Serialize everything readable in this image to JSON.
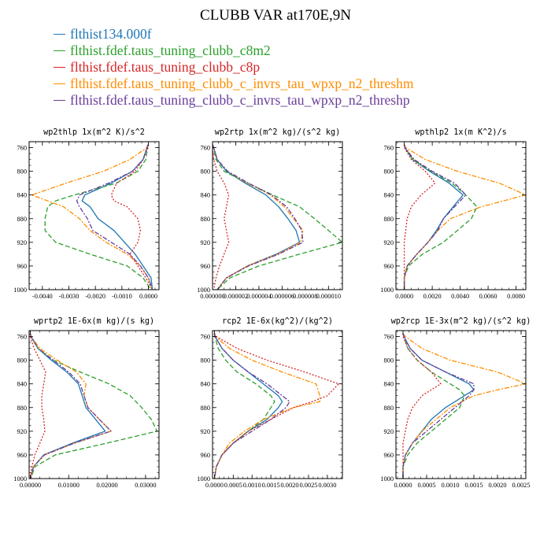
{
  "title": "CLUBB VAR at170E,9N",
  "legend": [
    {
      "name": "flthist134.000f",
      "color": "#1f77b4"
    },
    {
      "name": "flthist.fdef.taus_tuning_clubb_c8m2",
      "color": "#2ca02c"
    },
    {
      "name": "flthist.fdef.taus_tuning_clubb_c8p",
      "color": "#d62728"
    },
    {
      "name": "flthist.fdef.taus_tuning_clubb_c_invrs_tau_wpxp_n2_threshm",
      "color": "#ff8c00"
    },
    {
      "name": "flthist.fdef.taus_tuning_clubb_c_invrs_tau_wpxp_n2_threshp",
      "color": "#6a3d9a"
    }
  ],
  "chart_data": [
    {
      "type": "line",
      "title": "wp2thlp  1x(m^2 K)/s^2",
      "xlim": [
        -0.0045,
        0.0004
      ],
      "ylim": [
        1000,
        750
      ],
      "xticks": [
        -0.004,
        -0.003,
        -0.002,
        -0.001,
        0.0
      ],
      "xticklabels": [
        "-0.0040",
        "-0.0030",
        "-0.0020",
        "-0.0010",
        "0.0000"
      ],
      "yticks": [
        760,
        800,
        840,
        880,
        920,
        960,
        1000
      ],
      "pressure": [
        755,
        760,
        780,
        800,
        820,
        840,
        850,
        860,
        880,
        900,
        920,
        940,
        960,
        980,
        1000
      ],
      "series": [
        {
          "name": "flthist134.000f",
          "x": [
            -2e-05,
            -5e-05,
            -0.0002,
            -0.0006,
            -0.0014,
            -0.0024,
            -0.0025,
            -0.0022,
            -0.0019,
            -0.0013,
            -0.0009,
            -0.0005,
            -0.0002,
            0.0001,
            0.00015
          ]
        },
        {
          "name": "flthist.fdef.taus_tuning_clubb_c8m2",
          "x": [
            -2e-05,
            -3e-05,
            -0.0001,
            -0.0004,
            -0.0012,
            -0.0028,
            -0.0035,
            -0.0038,
            -0.0039,
            -0.0039,
            -0.0035,
            -0.0022,
            -0.0008,
            -0.0002,
            0.0001
          ]
        },
        {
          "name": "flthist.fdef.taus_tuning_clubb_c8p",
          "x": [
            0.0,
            -1e-05,
            -0.0002,
            -0.0005,
            -0.0012,
            -0.0014,
            -0.0013,
            -0.0008,
            -0.0004,
            -0.0003,
            -0.0004,
            -0.0007,
            -0.0004,
            -0.0001,
            0.00015
          ]
        },
        {
          "name": "flthist.fdef.taus_tuning_clubb_c_invrs_tau_wpxp_n2_threshm",
          "x": [
            -1e-05,
            -5e-05,
            -0.0007,
            -0.0017,
            -0.0031,
            -0.0044,
            -0.0038,
            -0.0032,
            -0.0026,
            -0.0022,
            -0.0016,
            -0.0008,
            -0.0003,
            0.0,
            0.00015
          ]
        },
        {
          "name": "flthist.fdef.taus_tuning_clubb_c_invrs_tau_wpxp_n2_threshp",
          "x": [
            -2e-05,
            -5e-05,
            -0.0002,
            -0.0006,
            -0.0015,
            -0.0026,
            -0.0027,
            -0.0026,
            -0.0023,
            -0.0021,
            -0.0014,
            -0.0007,
            -0.0003,
            0.0,
            0.00015
          ]
        }
      ]
    },
    {
      "type": "line",
      "title": "wp2rtp  1x(m^2 kg)/(s^2 kg)",
      "xlim": [
        0.0,
        1.12e-05
      ],
      "ylim": [
        1000,
        750
      ],
      "xticks": [
        0.0,
        2e-06,
        4e-06,
        6e-06,
        8e-06,
        1e-05
      ],
      "xticklabels": [
        "0.000000",
        "0.000002",
        "0.000004",
        "0.000006",
        "0.000008",
        "0.000010"
      ],
      "yticks": [
        760,
        800,
        840,
        880,
        920,
        960,
        1000
      ],
      "pressure": [
        755,
        760,
        780,
        800,
        820,
        840,
        860,
        880,
        900,
        920,
        940,
        960,
        980,
        1000
      ],
      "series": [
        {
          "name": "flthist134.000f",
          "x": [
            0.0,
            1e-07,
            4e-07,
            1.2e-06,
            2.8e-06,
            4.6e-06,
            5.7e-06,
            6.5e-06,
            7.2e-06,
            7.5e-06,
            5.5e-06,
            3e-06,
            1.2e-06,
            4e-07
          ]
        },
        {
          "name": "flthist.fdef.taus_tuning_clubb_c8m2",
          "x": [
            0.0,
            1e-07,
            3e-07,
            1e-06,
            3e-06,
            5.2e-06,
            7.5e-06,
            8.8e-06,
            1e-05,
            1.12e-05,
            7.5e-06,
            4e-06,
            1.5e-06,
            4e-07
          ]
        },
        {
          "name": "flthist.fdef.taus_tuning_clubb_c8p",
          "x": [
            0.0,
            0.0,
            1e-07,
            4e-07,
            1e-06,
            1.4e-06,
            1.2e-06,
            1e-06,
            1.2e-06,
            1.4e-06,
            1e-06,
            6e-07,
            3e-07,
            1e-07
          ]
        },
        {
          "name": "flthist.fdef.taus_tuning_clubb_c_invrs_tau_wpxp_n2_threshm",
          "x": [
            0.0,
            1e-07,
            4e-07,
            1.3e-06,
            3e-06,
            5e-06,
            6.2e-06,
            7e-06,
            7.8e-06,
            7.6e-06,
            5.6e-06,
            3e-06,
            1.2e-06,
            4e-07
          ]
        },
        {
          "name": "flthist.fdef.taus_tuning_clubb_c_invrs_tau_wpxp_n2_threshp",
          "x": [
            0.0,
            1e-07,
            4e-07,
            1.3e-06,
            3.1e-06,
            5.1e-06,
            6.4e-06,
            7.1e-06,
            7.7e-06,
            7.8e-06,
            5.7e-06,
            3.1e-06,
            1.2e-06,
            4e-07
          ]
        }
      ]
    },
    {
      "type": "line",
      "title": "wpthlp2  1x(m K^2)/s",
      "xlim": [
        -0.0006,
        0.0087
      ],
      "ylim": [
        1000,
        750
      ],
      "xticks": [
        0.0,
        0.002,
        0.004,
        0.006,
        0.008
      ],
      "xticklabels": [
        "0.0000",
        "0.0020",
        "0.0040",
        "0.0060",
        "0.0080"
      ],
      "yticks": [
        760,
        800,
        840,
        880,
        920,
        960,
        1000
      ],
      "pressure": [
        755,
        760,
        780,
        800,
        820,
        840,
        860,
        880,
        900,
        920,
        940,
        960,
        980,
        1000
      ],
      "series": [
        {
          "name": "flthist134.000f",
          "x": [
            0.0,
            5e-05,
            0.0006,
            0.0018,
            0.0032,
            0.0042,
            0.0035,
            0.0028,
            0.0023,
            0.0017,
            0.0009,
            0.0002,
            0.0,
            0.0
          ]
        },
        {
          "name": "flthist.fdef.taus_tuning_clubb_c8m2",
          "x": [
            0.0,
            5e-05,
            0.0006,
            0.0019,
            0.0034,
            0.0044,
            0.0052,
            0.0048,
            0.0038,
            0.0028,
            0.0013,
            0.0003,
            0.0,
            0.0
          ]
        },
        {
          "name": "flthist.fdef.taus_tuning_clubb_c8p",
          "x": [
            0.0,
            0.0,
            0.0005,
            0.0015,
            0.0022,
            0.0012,
            0.0005,
            0.0002,
            0.0001,
            0.0,
            0.0,
            0.0,
            0.0,
            0.0
          ]
        },
        {
          "name": "flthist.fdef.taus_tuning_clubb_c_invrs_tau_wpxp_n2_threshm",
          "x": [
            0.0,
            0.0001,
            0.0015,
            0.0038,
            0.0068,
            0.0087,
            0.0055,
            0.0033,
            0.0024,
            0.0017,
            0.0009,
            0.0002,
            0.0,
            0.0
          ]
        },
        {
          "name": "flthist.fdef.taus_tuning_clubb_c_invrs_tau_wpxp_n2_threshp",
          "x": [
            0.0,
            5e-05,
            0.0007,
            0.002,
            0.0036,
            0.0044,
            0.0036,
            0.0028,
            0.0024,
            0.0017,
            0.0009,
            0.0002,
            0.0,
            0.0
          ]
        }
      ]
    },
    {
      "type": "line",
      "title": "wprtp2  1E-6x(m kg)/(s kg)",
      "xlim": [
        -0.0003,
        0.0335
      ],
      "ylim": [
        1000,
        750
      ],
      "xticks": [
        0.0,
        0.01,
        0.02,
        0.03
      ],
      "xticklabels": [
        "0.00000",
        "0.01000",
        "0.02000",
        "0.03000"
      ],
      "yticks": [
        760,
        800,
        840,
        880,
        920,
        960,
        1000
      ],
      "pressure": [
        755,
        760,
        780,
        800,
        820,
        840,
        860,
        880,
        900,
        920,
        940,
        960,
        980,
        1000
      ],
      "series": [
        {
          "name": "flthist134.000f",
          "x": [
            0.0,
            0.0002,
            0.002,
            0.0055,
            0.0095,
            0.0125,
            0.0135,
            0.0145,
            0.017,
            0.0195,
            0.011,
            0.0035,
            0.0008,
            0.0001
          ]
        },
        {
          "name": "flthist.fdef.taus_tuning_clubb_c8m2",
          "x": [
            0.0,
            0.0002,
            0.002,
            0.006,
            0.013,
            0.0205,
            0.026,
            0.029,
            0.0315,
            0.033,
            0.02,
            0.0065,
            0.0012,
            0.0001
          ]
        },
        {
          "name": "flthist.fdef.taus_tuning_clubb_c8p",
          "x": [
            0.0,
            0.0,
            0.001,
            0.0025,
            0.004,
            0.0035,
            0.003,
            0.003,
            0.0035,
            0.0038,
            0.0025,
            0.0012,
            0.0004,
            0.0
          ]
        },
        {
          "name": "flthist.fdef.taus_tuning_clubb_c_invrs_tau_wpxp_n2_threshm",
          "x": [
            0.0,
            0.0002,
            0.0025,
            0.007,
            0.012,
            0.0145,
            0.014,
            0.015,
            0.018,
            0.021,
            0.0115,
            0.0037,
            0.0008,
            0.0001
          ]
        },
        {
          "name": "flthist.fdef.taus_tuning_clubb_c_invrs_tau_wpxp_n2_threshp",
          "x": [
            0.0,
            0.0002,
            0.002,
            0.006,
            0.01,
            0.013,
            0.014,
            0.015,
            0.018,
            0.021,
            0.0115,
            0.0037,
            0.0008,
            0.0001
          ]
        }
      ]
    },
    {
      "type": "line",
      "title": "rcp2  1E-6x(kg^2)/(kg^2)",
      "xlim": [
        -5e-05,
        0.0034
      ],
      "ylim": [
        1000,
        750
      ],
      "xticks": [
        0.0,
        0.0005,
        0.001,
        0.0015,
        0.002,
        0.0025,
        0.003
      ],
      "xticklabels": [
        "0.0000",
        "0.0005",
        "0.0010",
        "0.0015",
        "0.0020",
        "0.0025",
        "0.0030"
      ],
      "yticks": [
        760,
        800,
        840,
        880,
        920,
        960,
        1000
      ],
      "pressure": [
        755,
        760,
        780,
        800,
        820,
        840,
        860,
        870,
        880,
        900,
        920,
        940,
        960,
        980,
        1000
      ],
      "series": [
        {
          "name": "flthist134.000f",
          "x": [
            0.0,
            2e-05,
            0.0002,
            0.0005,
            0.0009,
            0.0013,
            0.0017,
            0.0018,
            0.0017,
            0.0014,
            0.0009,
            0.0005,
            0.0002,
            5e-05,
            0.0
          ]
        },
        {
          "name": "flthist.fdef.taus_tuning_clubb_c8m2",
          "x": [
            0.0,
            1e-05,
            0.0001,
            0.0003,
            0.0006,
            0.0011,
            0.0015,
            0.0016,
            0.0015,
            0.0013,
            0.0009,
            0.0005,
            0.0002,
            5e-05,
            0.0
          ]
        },
        {
          "name": "flthist.fdef.taus_tuning_clubb_c8p",
          "x": [
            0.0,
            5e-05,
            0.0006,
            0.0014,
            0.0024,
            0.0033,
            0.003,
            0.0026,
            0.0021,
            0.0015,
            0.0009,
            0.0005,
            0.0002,
            5e-05,
            0.0
          ]
        },
        {
          "name": "flthist.fdef.taus_tuning_clubb_c_invrs_tau_wpxp_n2_threshm",
          "x": [
            0.0,
            3e-05,
            0.0004,
            0.001,
            0.0018,
            0.0027,
            0.0028,
            0.0028,
            0.0021,
            0.0013,
            0.0008,
            0.0004,
            0.0002,
            5e-05,
            0.0
          ]
        },
        {
          "name": "flthist.fdef.taus_tuning_clubb_c_invrs_tau_wpxp_n2_threshp",
          "x": [
            0.0,
            2e-05,
            0.0002,
            0.0005,
            0.0009,
            0.0014,
            0.0018,
            0.002,
            0.0019,
            0.0015,
            0.001,
            0.0005,
            0.0002,
            5e-05,
            0.0
          ]
        }
      ]
    },
    {
      "type": "line",
      "title": "wp2rcp  1E-3x(m^2 kg)/(s^2 kg)",
      "xlim": [
        -0.00015,
        0.0026
      ],
      "ylim": [
        1000,
        750
      ],
      "xticks": [
        0.0,
        0.0005,
        0.001,
        0.0015,
        0.002,
        0.0025
      ],
      "xticklabels": [
        "0.0000",
        "0.0005",
        "0.0010",
        "0.0015",
        "0.0020",
        "0.0025"
      ],
      "yticks": [
        760,
        800,
        840,
        880,
        920,
        960,
        1000
      ],
      "pressure": [
        755,
        760,
        780,
        800,
        820,
        840,
        850,
        860,
        880,
        900,
        920,
        940,
        960,
        980,
        1000
      ],
      "series": [
        {
          "name": "flthist134.000f",
          "x": [
            0.0,
            2e-05,
            0.00015,
            0.0004,
            0.0009,
            0.0014,
            0.0015,
            0.0013,
            0.0009,
            0.0006,
            0.0004,
            0.0002,
            5e-05,
            0.0,
            0.0
          ]
        },
        {
          "name": "flthist.fdef.taus_tuning_clubb_c8m2",
          "x": [
            0.0,
            2e-05,
            0.0001,
            0.0003,
            0.0006,
            0.001,
            0.0012,
            0.0013,
            0.0012,
            0.0009,
            0.0006,
            0.0003,
            0.0001,
            0.0,
            0.0
          ]
        },
        {
          "name": "flthist.fdef.taus_tuning_clubb_c8p",
          "x": [
            0.0,
            0.0,
            0.0001,
            0.0003,
            0.0006,
            0.0008,
            0.0006,
            0.0004,
            0.0002,
            0.0001,
            5e-05,
            0.0,
            0.0,
            0.0,
            0.0
          ]
        },
        {
          "name": "flthist.fdef.taus_tuning_clubb_c_invrs_tau_wpxp_n2_threshm",
          "x": [
            0.0,
            5e-05,
            0.0004,
            0.001,
            0.002,
            0.0026,
            0.002,
            0.0015,
            0.001,
            0.0007,
            0.0004,
            0.0002,
            5e-05,
            0.0,
            0.0
          ]
        },
        {
          "name": "flthist.fdef.taus_tuning_clubb_c_invrs_tau_wpxp_n2_threshp",
          "x": [
            0.0,
            2e-05,
            0.00015,
            0.0004,
            0.0009,
            0.0015,
            0.0015,
            0.0014,
            0.0011,
            0.0008,
            0.0005,
            0.0002,
            5e-05,
            0.0,
            0.0
          ]
        }
      ]
    }
  ]
}
